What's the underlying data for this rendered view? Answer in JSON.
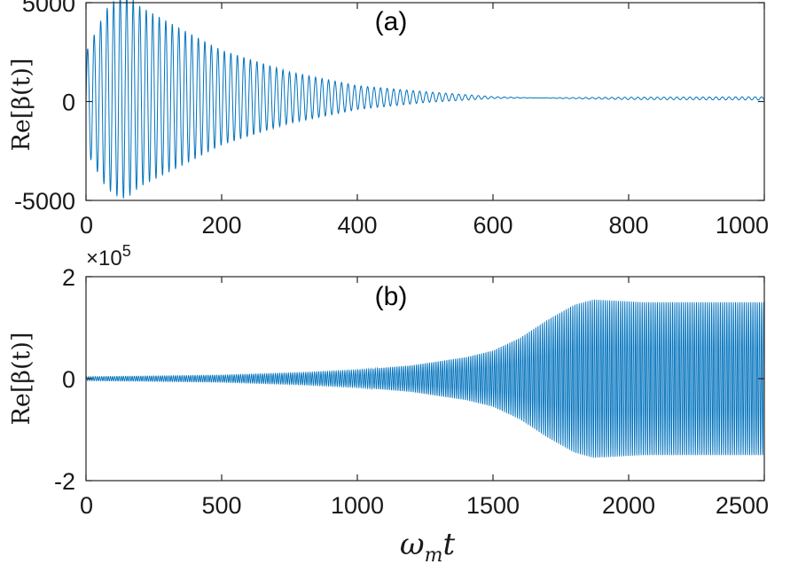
{
  "chart_data": [
    {
      "type": "line",
      "panel_label": "(a)",
      "ylabel": "Re[β(t)]",
      "xlim": [
        0,
        1000
      ],
      "ylim": [
        -5000,
        5000
      ],
      "xticks": [
        0,
        200,
        400,
        600,
        800,
        1000
      ],
      "xtick_labels": [
        "0",
        "200",
        "400",
        "600",
        "800",
        "1000"
      ],
      "yticks": [
        -5000,
        0,
        5000
      ],
      "ytick_labels": [
        "-5000",
        "0",
        "5000"
      ],
      "grid": false,
      "color": "#0072BD",
      "series": [
        {
          "description_free": true,
          "oscillation_period": 9.6,
          "center": [
            [
              0,
              0
            ],
            [
              300,
              150
            ],
            [
              500,
              250
            ],
            [
              1000,
              300
            ]
          ],
          "envelope_upper": [
            [
              0,
              2500
            ],
            [
              30,
              4700
            ],
            [
              50,
              5400
            ],
            [
              60,
              5500
            ],
            [
              80,
              4800
            ],
            [
              150,
              3500
            ],
            [
              200,
              2600
            ],
            [
              300,
              1500
            ],
            [
              400,
              800
            ],
            [
              500,
              500
            ],
            [
              600,
              250
            ],
            [
              700,
              150
            ],
            [
              800,
              100
            ],
            [
              1000,
              80
            ]
          ],
          "envelope_lower": [
            [
              0,
              -2500
            ],
            [
              30,
              -4400
            ],
            [
              50,
              -4900
            ],
            [
              60,
              -4900
            ],
            [
              80,
              -4300
            ],
            [
              150,
              -3100
            ],
            [
              200,
              -2200
            ],
            [
              300,
              -1100
            ],
            [
              400,
              -400
            ],
            [
              500,
              -50
            ],
            [
              600,
              150
            ],
            [
              700,
              200
            ],
            [
              800,
              220
            ],
            [
              1000,
              240
            ]
          ]
        }
      ]
    },
    {
      "type": "line",
      "panel_label": "(b)",
      "ylabel": "Re[β(t)]",
      "xlabel": "ωₘt",
      "xlabel_base": "ω",
      "xlabel_sub": "m",
      "xlabel_var": "t",
      "xlim": [
        0,
        2500
      ],
      "ylim": [
        -2,
        2
      ],
      "y_multiplier_base": "×10",
      "y_multiplier_exp": "5",
      "xticks": [
        0,
        500,
        1000,
        1500,
        2000,
        2500
      ],
      "xtick_labels": [
        "0",
        "500",
        "1000",
        "1500",
        "2000",
        "2500"
      ],
      "yticks": [
        -2,
        0,
        2
      ],
      "ytick_labels": [
        "-2",
        "0",
        "2"
      ],
      "grid": false,
      "color": "#0072BD",
      "series": [
        {
          "oscillation_period": 8,
          "envelope": [
            [
              0,
              0.04
            ],
            [
              200,
              0.05
            ],
            [
              500,
              0.07
            ],
            [
              800,
              0.12
            ],
            [
              1000,
              0.17
            ],
            [
              1200,
              0.26
            ],
            [
              1400,
              0.42
            ],
            [
              1500,
              0.55
            ],
            [
              1600,
              0.8
            ],
            [
              1700,
              1.15
            ],
            [
              1800,
              1.45
            ],
            [
              1870,
              1.55
            ],
            [
              1950,
              1.53
            ],
            [
              2050,
              1.5
            ],
            [
              2500,
              1.5
            ]
          ]
        }
      ]
    }
  ]
}
